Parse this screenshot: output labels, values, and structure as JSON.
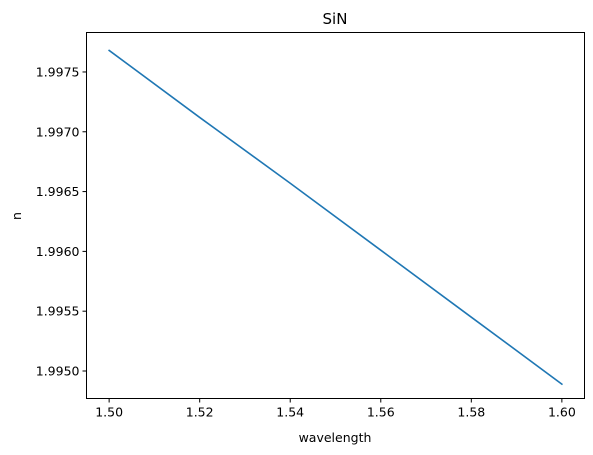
{
  "chart_data": {
    "type": "line",
    "title": "SiN",
    "xlabel": "wavelength",
    "ylabel": "n",
    "xlim": [
      1.495,
      1.605
    ],
    "ylim": [
      1.99477,
      1.99783
    ],
    "xticks": [
      1.5,
      1.52,
      1.54,
      1.56,
      1.58,
      1.6
    ],
    "xtick_labels": [
      "1.50",
      "1.52",
      "1.54",
      "1.56",
      "1.58",
      "1.60"
    ],
    "yticks": [
      1.995,
      1.9955,
      1.996,
      1.9965,
      1.997,
      1.9975
    ],
    "ytick_labels": [
      "1.9950",
      "1.9955",
      "1.9960",
      "1.9965",
      "1.9970",
      "1.9975"
    ],
    "grid": false,
    "series": [
      {
        "name": "n",
        "color": "#1f77b4",
        "x": [
          1.5,
          1.52,
          1.54,
          1.56,
          1.58,
          1.6
        ],
        "y": [
          1.99768,
          1.99712,
          1.99657,
          1.99601,
          1.99545,
          1.99489
        ]
      }
    ]
  }
}
